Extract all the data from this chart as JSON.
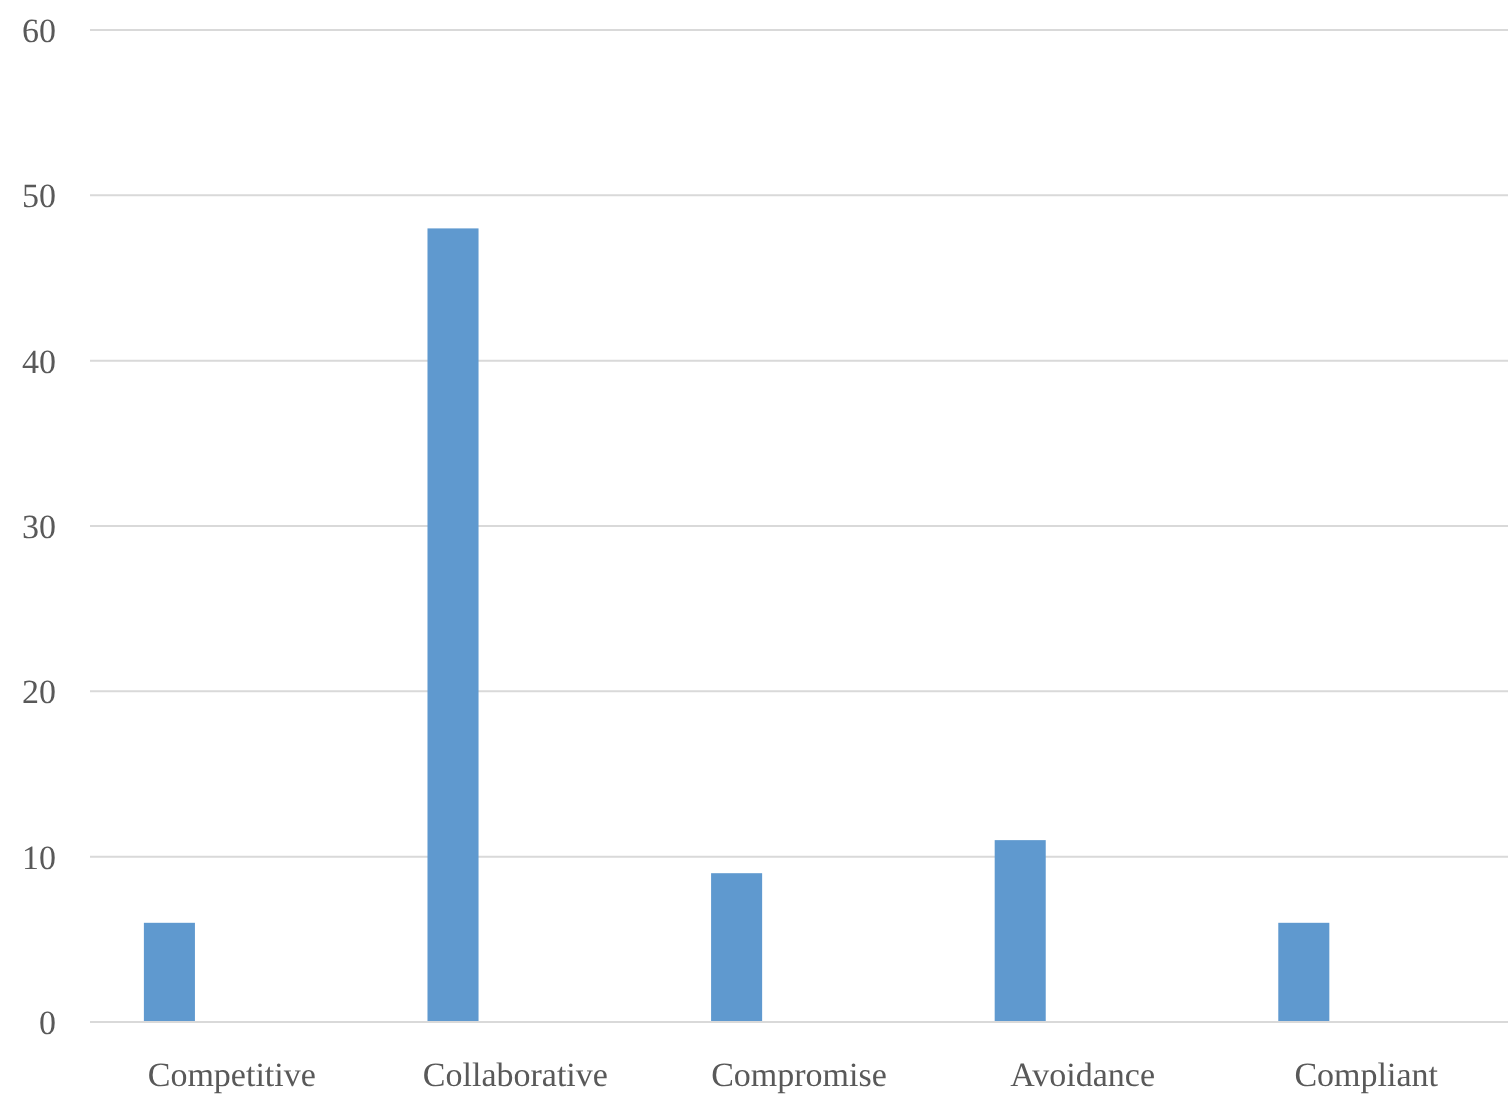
{
  "chart_data": {
    "type": "bar",
    "categories": [
      "Competitive",
      "Collaborative",
      "Compromise",
      "Avoidance",
      "Compliant"
    ],
    "values": [
      6,
      48,
      9,
      11,
      6
    ],
    "color": "#5f99cf",
    "ylim": [
      0,
      60
    ],
    "yticks": [
      0,
      10,
      20,
      30,
      40,
      50,
      60
    ],
    "grid": "y"
  }
}
